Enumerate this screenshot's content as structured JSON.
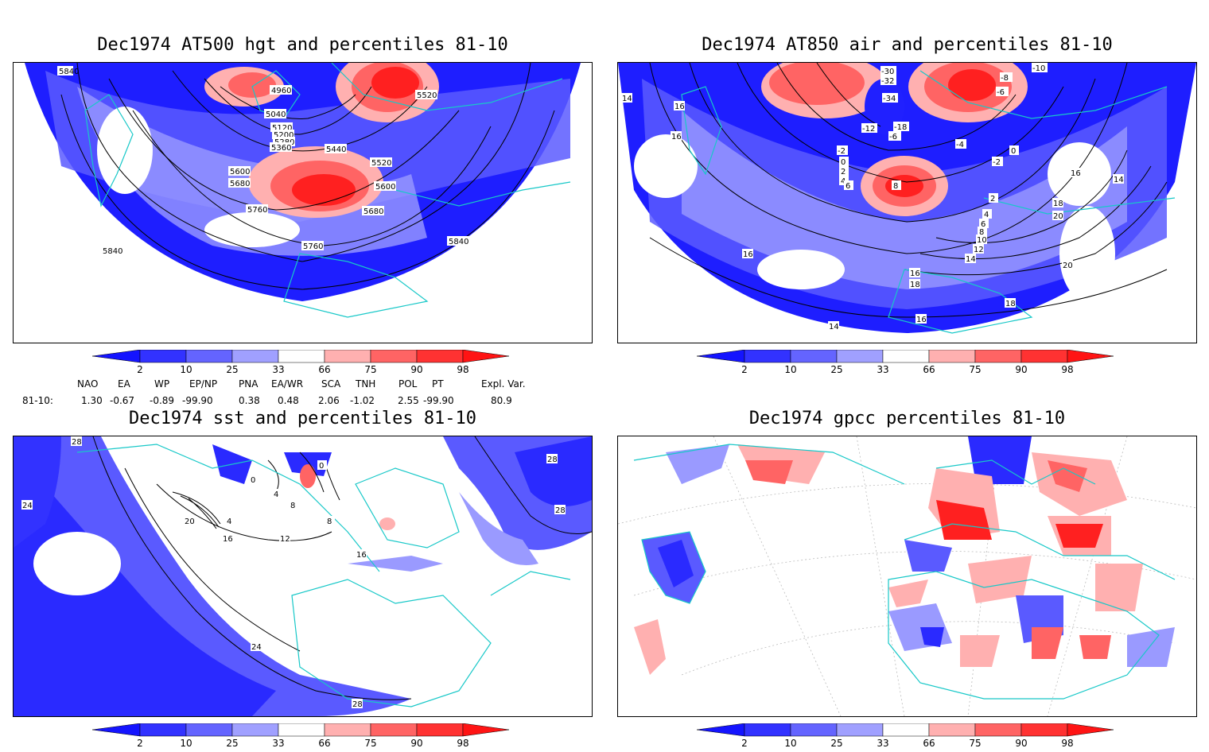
{
  "panels": [
    {
      "title": "Dec1974 AT500 hgt and percentiles 81-10",
      "contour_labels": [
        "5840",
        "4960",
        "5520",
        "5040",
        "5120",
        "5200",
        "5280",
        "5360",
        "5440",
        "5520",
        "5600",
        "5680",
        "5600",
        "5760",
        "5680",
        "5840",
        "5760",
        "5840"
      ]
    },
    {
      "title": "Dec1974 AT850 air and percentiles 81-10",
      "contour_labels": [
        "14",
        "16",
        "16",
        "-30",
        "-32",
        "-34",
        "-10",
        "-8",
        "-6",
        "-12",
        "-18",
        "-6",
        "-2",
        "0",
        "2",
        "4",
        "6",
        "8",
        "-4",
        "0",
        "-2",
        "16",
        "14",
        "2",
        "4",
        "6",
        "8",
        "10",
        "12",
        "14",
        "18",
        "20",
        "16",
        "20",
        "16",
        "18",
        "16",
        "18",
        "14"
      ]
    },
    {
      "title": "Dec1974 sst and percentiles 81-10",
      "contour_labels": [
        "28",
        "24",
        "0",
        "0",
        "4",
        "8",
        "4",
        "20",
        "16",
        "12",
        "16",
        "8",
        "24",
        "28",
        "28",
        "28"
      ]
    },
    {
      "title": "Dec1974 gpcc percentiles 81-10",
      "contour_labels": []
    }
  ],
  "colorbar": {
    "labels": [
      "2",
      "10",
      "25",
      "33",
      "66",
      "75",
      "90",
      "98"
    ],
    "colors": [
      "#1414ff",
      "#3232ff",
      "#6464ff",
      "#a0a0ff",
      "#ffffff",
      "#ffb0b0",
      "#ff6464",
      "#ff3232",
      "#ff1414"
    ]
  },
  "indices": {
    "headers": [
      "NAO",
      "EA",
      "WP",
      "EP/NP",
      "PNA",
      "EA/WR",
      "SCA",
      "TNH",
      "POL",
      "PT",
      "Expl. Var."
    ],
    "row_label": "81-10:",
    "values": [
      "1.30",
      "-0.67",
      "-0.89",
      "-99.90",
      "0.38",
      "0.48",
      "2.06",
      "-1.02",
      "2.55",
      "-99.90",
      "80.9"
    ]
  }
}
